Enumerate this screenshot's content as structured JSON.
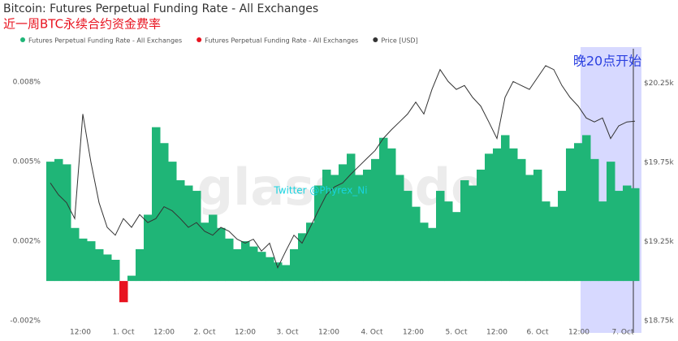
{
  "chart_data": {
    "type": "bar",
    "title": "Bitcoin: Futures Perpetual Funding Rate - All Exchanges",
    "subtitle": "近一周BTC永续合约资金费率",
    "annotation": "晚20点开始",
    "watermark": "glassnode",
    "credit": "Twitter @Phyrex_Ni",
    "xlim": [
      0,
      72
    ],
    "xticks": [
      {
        "value": 3.7,
        "label": "12:00"
      },
      {
        "value": 9.0,
        "label": "1. Oct"
      },
      {
        "value": 14.0,
        "label": "12:00"
      },
      {
        "value": 19.0,
        "label": "2. Oct"
      },
      {
        "value": 24.0,
        "label": "12:00"
      },
      {
        "value": 29.2,
        "label": "3. Oct"
      },
      {
        "value": 34.3,
        "label": "12:00"
      },
      {
        "value": 39.6,
        "label": "4. Oct"
      },
      {
        "value": 44.7,
        "label": "12:00"
      },
      {
        "value": 50.0,
        "label": "5. Oct"
      },
      {
        "value": 55.0,
        "label": "12:00"
      },
      {
        "value": 60.0,
        "label": "6. Oct"
      },
      {
        "value": 65.1,
        "label": "12:00"
      },
      {
        "value": 70.5,
        "label": "7. Oct"
      }
    ],
    "ylim": [
      -0.00165,
      0.0083
    ],
    "yticks": [
      {
        "value": -0.0015,
        "label": "-0.002%"
      },
      {
        "value": 0.0015,
        "label": "0.002%"
      },
      {
        "value": 0.0045,
        "label": "0.005%"
      },
      {
        "value": 0.0075,
        "label": "0.008%"
      }
    ],
    "y2lim": [
      18725,
      20390
    ],
    "y2ticks": [
      {
        "value": 18750,
        "label": "$18.75k"
      },
      {
        "value": 19250,
        "label": "$19.25k"
      },
      {
        "value": 19750,
        "label": "$19.75k"
      },
      {
        "value": 20250,
        "label": "$20.25k"
      }
    ],
    "series": [
      {
        "name": "Futures Perpetual Funding Rate - All Exchanges",
        "color": "#1fb577",
        "values": [
          0.0045,
          0.0046,
          0.0044,
          0.002,
          0.0016,
          0.0015,
          0.0012,
          0.001,
          0.0008,
          null,
          0.0002,
          0.0012,
          0.0025,
          0.0058,
          0.0052,
          0.0045,
          0.0038,
          0.0036,
          0.0034,
          0.0022,
          0.0025,
          0.002,
          0.0016,
          0.0012,
          0.0015,
          0.0013,
          0.0011,
          0.0009,
          0.0007,
          0.0006,
          0.0012,
          0.0018,
          0.0022,
          0.0036,
          0.0042,
          0.004,
          0.0044,
          0.0048,
          0.004,
          0.0042,
          0.0046,
          0.0054,
          0.005,
          0.004,
          0.0034,
          0.0028,
          0.0022,
          0.002,
          0.0034,
          0.003,
          0.0026,
          0.0038,
          0.0036,
          0.0042,
          0.0048,
          0.005,
          0.0055,
          0.005,
          0.0046,
          0.004,
          0.0042,
          0.003,
          0.0028,
          0.0034,
          0.005,
          0.0052,
          0.0055,
          0.0046,
          0.003,
          0.0045,
          0.0034,
          0.0036,
          0.0035
        ]
      },
      {
        "name": "Futures Perpetual Funding Rate - All Exchanges",
        "color": "#e8131f",
        "values": [
          null,
          null,
          null,
          null,
          null,
          null,
          null,
          null,
          null,
          -0.0008,
          null,
          null,
          null,
          null,
          null,
          null,
          null,
          null,
          null,
          null,
          null,
          null,
          null,
          null,
          null,
          null,
          null,
          null,
          null,
          null,
          null,
          null,
          null,
          null,
          null,
          null,
          null,
          null,
          null,
          null,
          null,
          null,
          null,
          null,
          null,
          null,
          null,
          null,
          null,
          null,
          null,
          null,
          null,
          null,
          null,
          null,
          null,
          null,
          null,
          null,
          null,
          null,
          null,
          null,
          null,
          null,
          null,
          null,
          null,
          null,
          null,
          null,
          null
        ]
      },
      {
        "name": "Price [USD]",
        "color": "#333333",
        "axis": "y2",
        "values": [
          19620,
          19545,
          19495,
          19395,
          20055,
          19750,
          19495,
          19340,
          19290,
          19395,
          19340,
          19420,
          19370,
          19395,
          19470,
          19445,
          19395,
          19340,
          19370,
          19315,
          19290,
          19340,
          19315,
          19265,
          19240,
          19265,
          19190,
          19240,
          19085,
          19190,
          19290,
          19240,
          19340,
          19445,
          19545,
          19595,
          19620,
          19675,
          19725,
          19775,
          19825,
          19900,
          19955,
          20005,
          20055,
          20130,
          20055,
          20210,
          20335,
          20260,
          20210,
          20235,
          20160,
          20105,
          20005,
          19900,
          20160,
          20260,
          20235,
          20210,
          20285,
          20360,
          20335,
          20235,
          20160,
          20105,
          20030,
          20005,
          20030,
          19900,
          19980,
          20005,
          20010
        ]
      }
    ]
  }
}
